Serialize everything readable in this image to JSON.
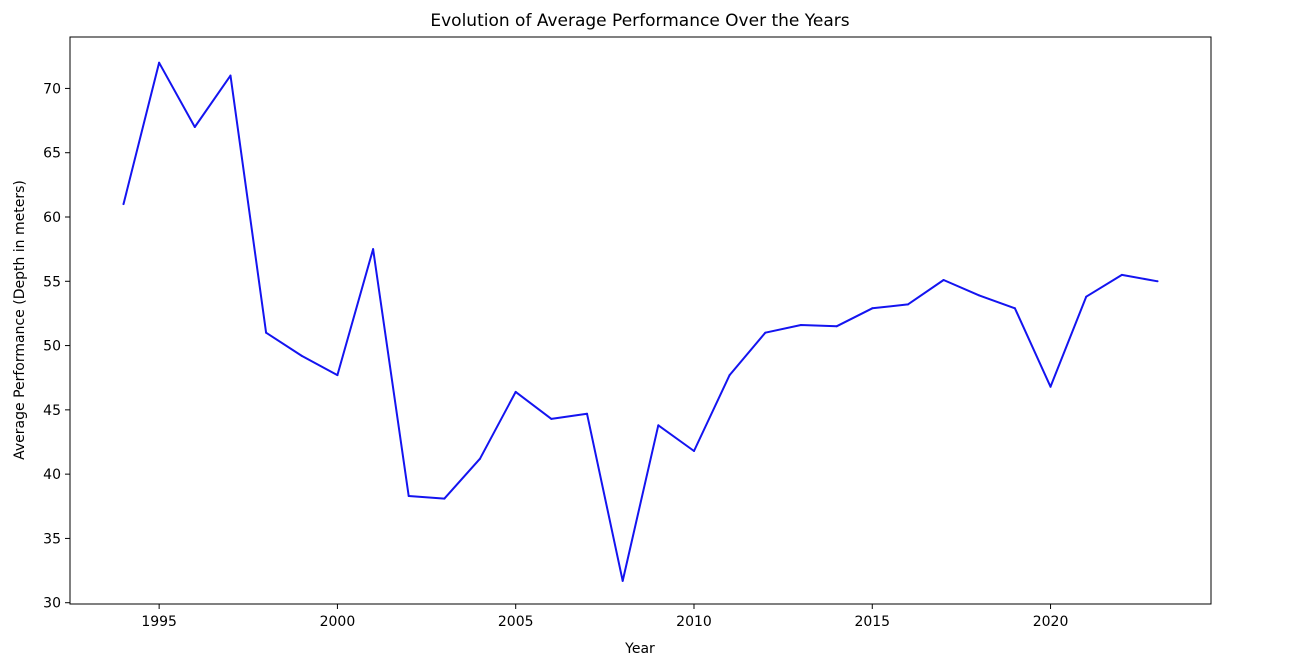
{
  "chart_data": {
    "type": "line",
    "title": "Evolution of Average Performance Over the Years",
    "xlabel": "Year",
    "ylabel": "Average Performance (Depth in meters)",
    "xlim": [
      1992.5,
      2024.5
    ],
    "ylim": [
      29.9,
      74.0
    ],
    "xticks": [
      1995,
      2000,
      2005,
      2010,
      2015,
      2020
    ],
    "yticks": [
      30,
      35,
      40,
      45,
      50,
      55,
      60,
      65,
      70
    ],
    "grid": false,
    "legend": "none",
    "series": [
      {
        "color": "#1414f0",
        "x": [
          1994,
          1995,
          1996,
          1997,
          1998,
          1999,
          2000,
          2001,
          2002,
          2003,
          2004,
          2005,
          2006,
          2007,
          2008,
          2009,
          2010,
          2011,
          2012,
          2013,
          2014,
          2015,
          2016,
          2017,
          2018,
          2019,
          2020,
          2021,
          2022,
          2023
        ],
        "y": [
          61.0,
          72.0,
          67.0,
          71.0,
          51.0,
          49.2,
          47.7,
          57.5,
          38.3,
          38.1,
          41.2,
          46.4,
          44.3,
          44.7,
          31.7,
          43.8,
          41.8,
          47.7,
          51.0,
          51.6,
          51.5,
          52.9,
          53.2,
          55.1,
          53.9,
          52.9,
          46.8,
          53.8,
          55.5,
          55.0
        ]
      }
    ]
  }
}
